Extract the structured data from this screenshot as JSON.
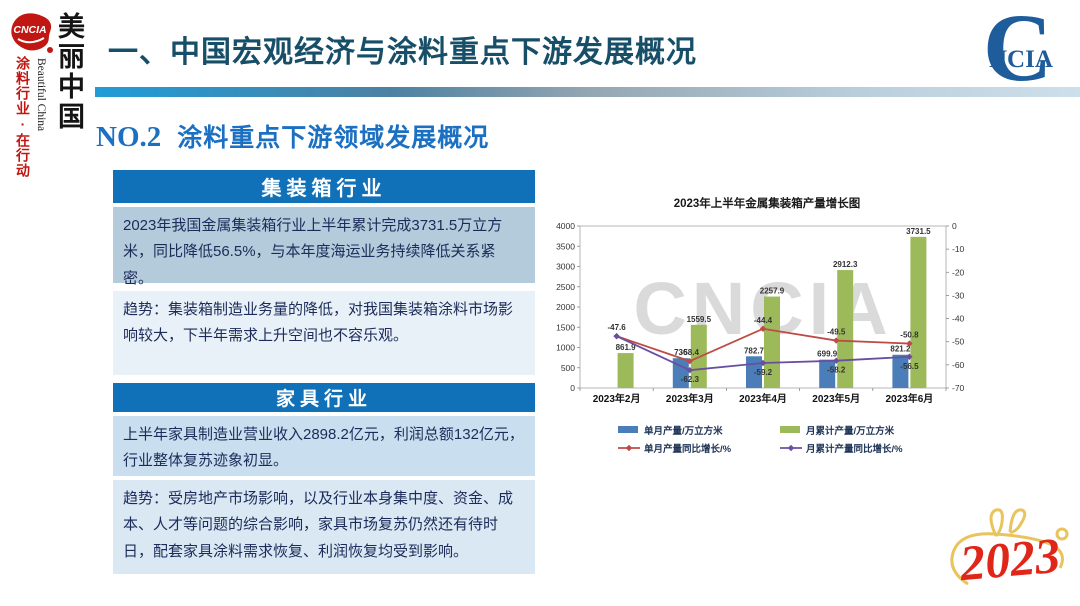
{
  "sidebar": {
    "logo": "CNCIA",
    "slogan_cn": "美丽中国",
    "slogan_en": "Beautiful China",
    "slogan_action": "涂料行业·在行动"
  },
  "header": {
    "title": "一、中国宏观经济与涂料重点下游发展概况",
    "section_no": "NO.2",
    "section_title": "涂料重点下游领域发展概况",
    "corner_logo_c": "C",
    "corner_logo_text": "NCIA"
  },
  "sections": [
    {
      "title": "集装箱行业",
      "body": "2023年我国金属集装箱行业上半年累计完成3731.5万立方米，同比降低56.5%，与本年度海运业务持续降低关系紧密。",
      "trend": "趋势：集装箱制造业务量的降低，对我国集装箱涂料市场影响较大，下半年需求上升空间也不容乐观。"
    },
    {
      "title": "家具行业",
      "body": "上半年家具制造业营业收入2898.2亿元，利润总额132亿元，行业整体复苏迹象初显。",
      "trend": "趋势：受房地产市场影响，以及行业本身集中度、资金、成本、人才等问题的综合影响，家具市场复苏仍然还有待时日，配套家具涂料需求恢复、利润恢复均受到影响。"
    }
  ],
  "chart_data": {
    "type": "combo",
    "title": "2023年上半年金属集装箱产量增长图",
    "categories": [
      "2023年2月",
      "2023年3月",
      "2023年4月",
      "2023年5月",
      "2023年6月"
    ],
    "series": [
      {
        "name": "单月产量/万立方米",
        "kind": "bar",
        "axis": "left",
        "color": "#4B7DB8",
        "values": [
          null,
          736,
          782.7,
          699.9,
          821.2
        ],
        "labels": [
          "",
          "736",
          "782.7",
          "699.9",
          "821.2"
        ]
      },
      {
        "name": "月累计产量/万立方米",
        "kind": "bar",
        "axis": "left",
        "color": "#9CBA5A",
        "values": [
          861.9,
          1559.5,
          2257.9,
          2912.3,
          3731.5
        ],
        "labels": [
          "861.9",
          "1559.5",
          "2257.9",
          "2912.3",
          "3731.5"
        ]
      },
      {
        "name": "单月产量同比增长/%",
        "kind": "line",
        "axis": "right",
        "color": "#BE4B45",
        "label_pos": "above",
        "values": [
          -47.6,
          -58.4,
          -44.4,
          -49.5,
          -50.8
        ],
        "labels": [
          "-47.6",
          "-58.4",
          "-44.4",
          "-49.5",
          "-50.8"
        ]
      },
      {
        "name": "月累计产量同比增长/%",
        "kind": "line",
        "axis": "right",
        "color": "#6A4FA0",
        "label_pos": "below",
        "values": [
          -47.6,
          -62.3,
          -59.2,
          -58.2,
          -56.5
        ],
        "labels": [
          "",
          "-62.3",
          "-59.2",
          "-58.2",
          "-56.5"
        ]
      }
    ],
    "left_axis": {
      "min": 0,
      "max": 4000,
      "step": 500
    },
    "right_axis": {
      "min": -70,
      "max": 0,
      "step": 10
    },
    "grid": false,
    "legend_position": "bottom",
    "watermark": "CNCIA"
  },
  "footer": {
    "year_badge": "2023"
  }
}
